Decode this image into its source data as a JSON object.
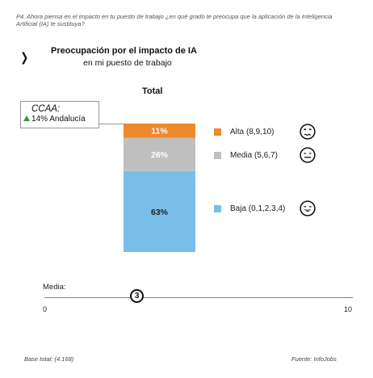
{
  "question": "P4. Ahora piensa en el impacto en tu puesto de trabajo ¿en qué grado te preocupa que la aplicación de la Inteligencia Artificial (IA) te sustituya?",
  "title": "Preocupación por el impacto de IA",
  "subtitle": "en mi puesto de trabajo",
  "chevron": "❯",
  "ccaa": {
    "title": "CCAA:",
    "value": "14% Andalucía",
    "trend": "up"
  },
  "chart_data": {
    "type": "bar",
    "stacked": true,
    "categories": [
      "Total"
    ],
    "series": [
      {
        "name": "Baja (0,1,2,3,4)",
        "values": [
          63
        ],
        "label": "63%",
        "color": "#79bde9",
        "label_color": "#222222",
        "icon": "smiling-face-icon"
      },
      {
        "name": "Media (5,6,7)",
        "values": [
          26
        ],
        "label": "26%",
        "color": "#bfbfbf",
        "label_color": "#ffffff",
        "icon": "neutral-face-icon"
      },
      {
        "name": "Alta (8,9,10)",
        "values": [
          11
        ],
        "label": "11%",
        "color": "#f0882a",
        "label_color": "#ffffff",
        "icon": "worried-face-icon"
      }
    ],
    "ylim": [
      0,
      100
    ],
    "legend_position": "right"
  },
  "media": {
    "label": "Media:",
    "value": 3,
    "display": "3",
    "scale_min": "0",
    "scale_max": "10",
    "min": 0,
    "max": 10
  },
  "footer": {
    "base": "Base total: (4.168)",
    "source": "Fuente: InfoJobs"
  }
}
